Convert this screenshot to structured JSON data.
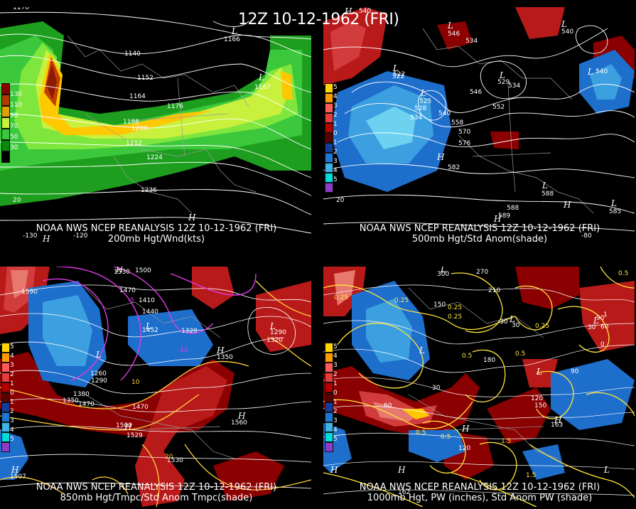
{
  "main_title": "12Z 10-12-1962 (FRI)",
  "panels": [
    {
      "caption_line1": "NOAA NWS NCEP REANALYSIS 12Z 10-12-1962 (FRI)",
      "caption_line2": "200mb Hgt/Wnd(kts)",
      "legend_labels": [
        "130",
        "110",
        "90",
        "70",
        "50",
        "30"
      ],
      "contour_labels": [
        "1176",
        "1140",
        "1152",
        "1164",
        "1176",
        "1188",
        "1200",
        "1212",
        "1224",
        "1236",
        "1166",
        "1167"
      ],
      "edge_labels": [
        "-130",
        "-120",
        "20"
      ],
      "low_labels": [
        "L",
        "L"
      ],
      "high_labels": [
        "H",
        "H"
      ]
    },
    {
      "caption_line1": "NOAA NWS NCEP REANALYSIS 12Z 10-12-1962 (FRI)",
      "caption_line2": "500mb Hgt/Std Anom(shade)",
      "legend_labels": [
        "5",
        "4",
        "3",
        "2",
        "1",
        "0",
        "1",
        "2",
        "3",
        "4",
        "5"
      ],
      "contour_labels": [
        "540",
        "558",
        "534",
        "522",
        "528",
        "534",
        "540",
        "546",
        "552",
        "558",
        "570",
        "576",
        "582",
        "588",
        "546",
        "540",
        "529",
        "534",
        "540",
        "525",
        "522",
        "585",
        "588",
        "589"
      ],
      "edge_labels": [
        "20",
        "-80"
      ],
      "low_labels": [
        "L",
        "L",
        "L",
        "L",
        "L",
        "L",
        "L",
        "L"
      ],
      "high_labels": [
        "H",
        "H",
        "H",
        "H"
      ]
    },
    {
      "caption_line1": "NOAA NWS NCEP REANALYSIS 12Z 10-12-1962 (FRI)",
      "caption_line2": "850mb Hgt/Tmpc/Std Anom Tmpc(shade)",
      "legend_labels": [
        "5",
        "4",
        "3",
        "2",
        "1",
        "0",
        "1",
        "2",
        "3",
        "4",
        "5"
      ],
      "contour_labels": [
        "1530",
        "1500",
        "1470",
        "1410",
        "1440",
        "1452",
        "1320",
        "1350",
        "1290",
        "1320",
        "1260",
        "1290",
        "1380",
        "1350",
        "1470",
        "1470",
        "1500",
        "1529",
        "1530",
        "1560",
        "1590",
        "1507",
        "10",
        "20",
        "-5",
        "-10"
      ],
      "edge_labels": [],
      "low_labels": [
        "L",
        "L",
        "L"
      ],
      "high_labels": [
        "H",
        "H",
        "H",
        "H",
        "H"
      ]
    },
    {
      "caption_line1": "NOAA NWS NCEP REANALYSIS 12Z 10-12-1962 (FRI)",
      "caption_line2": "1000mb Hgt, PW (inches), Std Anom PW (shade)",
      "legend_labels": [
        "5",
        "4",
        "3",
        "2",
        "1",
        "0",
        "1",
        "2",
        "3",
        "4",
        "5"
      ],
      "contour_labels": [
        "0.25",
        "0.25",
        "0.25",
        "0.5",
        "0.5",
        "0.5",
        "0.5",
        "1.5",
        "1.5",
        "0.25",
        "0.5",
        "0.25",
        "90",
        "60",
        "30",
        "30",
        "60",
        "90",
        "120",
        "150",
        "210",
        "270",
        "300",
        "120",
        "150",
        "180",
        "0",
        "30",
        "-30",
        "1",
        "163",
        "162"
      ],
      "edge_labels": [],
      "low_labels": [
        "L",
        "L",
        "L",
        "L",
        "L",
        "L"
      ],
      "high_labels": [
        "H",
        "H",
        "H",
        "H"
      ]
    }
  ],
  "colors": {
    "wind": [
      "#006400",
      "#1e9e1e",
      "#3cc83c",
      "#7ee63c",
      "#c8f03c",
      "#ffc800",
      "#e08a00",
      "#c04000",
      "#8b1a00"
    ],
    "anom_pos": [
      "#5a0000",
      "#8b0000",
      "#b81a1a",
      "#d23c3c",
      "#e6786e",
      "#f0b4a0"
    ],
    "anom_neg": [
      "#0a3c8c",
      "#1e6ecc",
      "#3ca0e0",
      "#6cd2f0",
      "#00e0e0",
      "#8c3cc8"
    ],
    "legend_anom": [
      "#ffd400",
      "#ff9a00",
      "#ff5a5a",
      "#e63c3c",
      "#b40000",
      "#5a0000",
      "#143c9c",
      "#1e78d2",
      "#3cb4e6",
      "#00dcdc",
      "#8c3cc8"
    ],
    "legend_wind": [
      "#8b0000",
      "#b03a00",
      "#e0a000",
      "#c8f03c",
      "#3cc83c",
      "#0a8a0a"
    ],
    "pw_contour": "#ffe63c",
    "temp_contour_warm": "#ffd23c",
    "temp_contour_cold": "#e03ce6"
  }
}
